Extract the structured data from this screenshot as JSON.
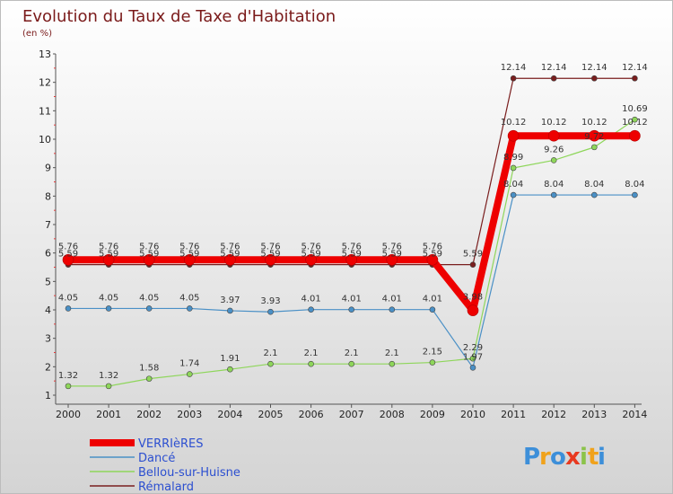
{
  "colors": {
    "title": "#7a1a1a",
    "bg_top": "#ffffff",
    "bg_bottom": "#d4d4d4",
    "axis": "#555555",
    "tick_red": "#e33a3a"
  },
  "chart_data": {
    "type": "line",
    "title": "Evolution du Taux de Taxe d'Habitation",
    "subtitle": "(en %)",
    "xlabel": "",
    "ylabel": "",
    "ylim": [
      1,
      13
    ],
    "yticks": [
      "1",
      "2",
      "3",
      "4",
      "5",
      "6",
      "7",
      "8",
      "9",
      "10",
      "11",
      "12",
      "13"
    ],
    "categories": [
      "2000",
      "2001",
      "2002",
      "2003",
      "2004",
      "2005",
      "2006",
      "2007",
      "2008",
      "2009",
      "2010",
      "2011",
      "2012",
      "2013",
      "2014"
    ],
    "grid": false,
    "legend_position": "bottom-left",
    "series": [
      {
        "name": "Rémalard",
        "color": "#7a1e1e",
        "width": 1.2,
        "marker": 3,
        "values": [
          5.59,
          5.59,
          5.59,
          5.59,
          5.59,
          5.59,
          5.59,
          5.59,
          5.59,
          5.59,
          5.59,
          12.14,
          12.14,
          12.14,
          12.14
        ],
        "labels": [
          "5.59",
          "5.59",
          "5.59",
          "5.59",
          "5.59",
          "5.59",
          "5.59",
          "5.59",
          "5.59",
          "5.59",
          "5.59",
          "12.14",
          "12.14",
          "12.14",
          "12.14"
        ]
      },
      {
        "name": "Dancé",
        "color": "#4a90c6",
        "width": 1.2,
        "marker": 3,
        "values": [
          4.05,
          4.05,
          4.05,
          4.05,
          3.97,
          3.93,
          4.01,
          4.01,
          4.01,
          4.01,
          1.97,
          8.04,
          8.04,
          8.04,
          8.04
        ],
        "labels": [
          "4.05",
          "4.05",
          "4.05",
          "4.05",
          "3.97",
          "3.93",
          "4.01",
          "4.01",
          "4.01",
          "4.01",
          "1.97",
          "8.04",
          "8.04",
          "8.04",
          "8.04"
        ]
      },
      {
        "name": "Bellou-sur-Huisne",
        "color": "#8ed65a",
        "width": 1.2,
        "marker": 3,
        "values": [
          1.32,
          1.32,
          1.58,
          1.74,
          1.91,
          2.1,
          2.1,
          2.1,
          2.1,
          2.15,
          2.29,
          8.99,
          9.26,
          9.72,
          10.69
        ],
        "labels": [
          "1.32",
          "1.32",
          "1.58",
          "1.74",
          "1.91",
          "2.1",
          "2.1",
          "2.1",
          "2.1",
          "2.15",
          "2.29",
          "8.99",
          "9.26",
          "9.72",
          "10.69"
        ]
      },
      {
        "name": "VERRIèRES",
        "color": "#ee0000",
        "width": 8,
        "marker": 6,
        "values": [
          5.76,
          5.76,
          5.76,
          5.76,
          5.76,
          5.76,
          5.76,
          5.76,
          5.76,
          5.76,
          3.98,
          10.12,
          10.12,
          10.12,
          10.12
        ],
        "labels": [
          "5.76",
          "5.76",
          "5.76",
          "5.76",
          "5.76",
          "5.76",
          "5.76",
          "5.76",
          "5.76",
          "5.76",
          "3.98",
          "10.12",
          "10.12",
          "10.12",
          "10.12"
        ]
      }
    ],
    "legend": [
      {
        "name": "VERRIèRES",
        "color": "#ee0000",
        "width": 8
      },
      {
        "name": "Dancé",
        "color": "#4a90c6",
        "width": 1.5
      },
      {
        "name": "Bellou-sur-Huisne",
        "color": "#8ed65a",
        "width": 1.5
      },
      {
        "name": "Rémalard",
        "color": "#7a1e1e",
        "width": 1.5
      }
    ]
  },
  "brand": {
    "letters": [
      {
        "char": "P",
        "color": "#3d8fd9"
      },
      {
        "char": "r",
        "color": "#f0a21b"
      },
      {
        "char": "o",
        "color": "#3d8fd9"
      },
      {
        "char": "x",
        "color": "#e8391f"
      },
      {
        "char": "i",
        "color": "#8bc34a"
      },
      {
        "char": "t",
        "color": "#f0a21b"
      },
      {
        "char": "i",
        "color": "#3d8fd9"
      }
    ]
  }
}
